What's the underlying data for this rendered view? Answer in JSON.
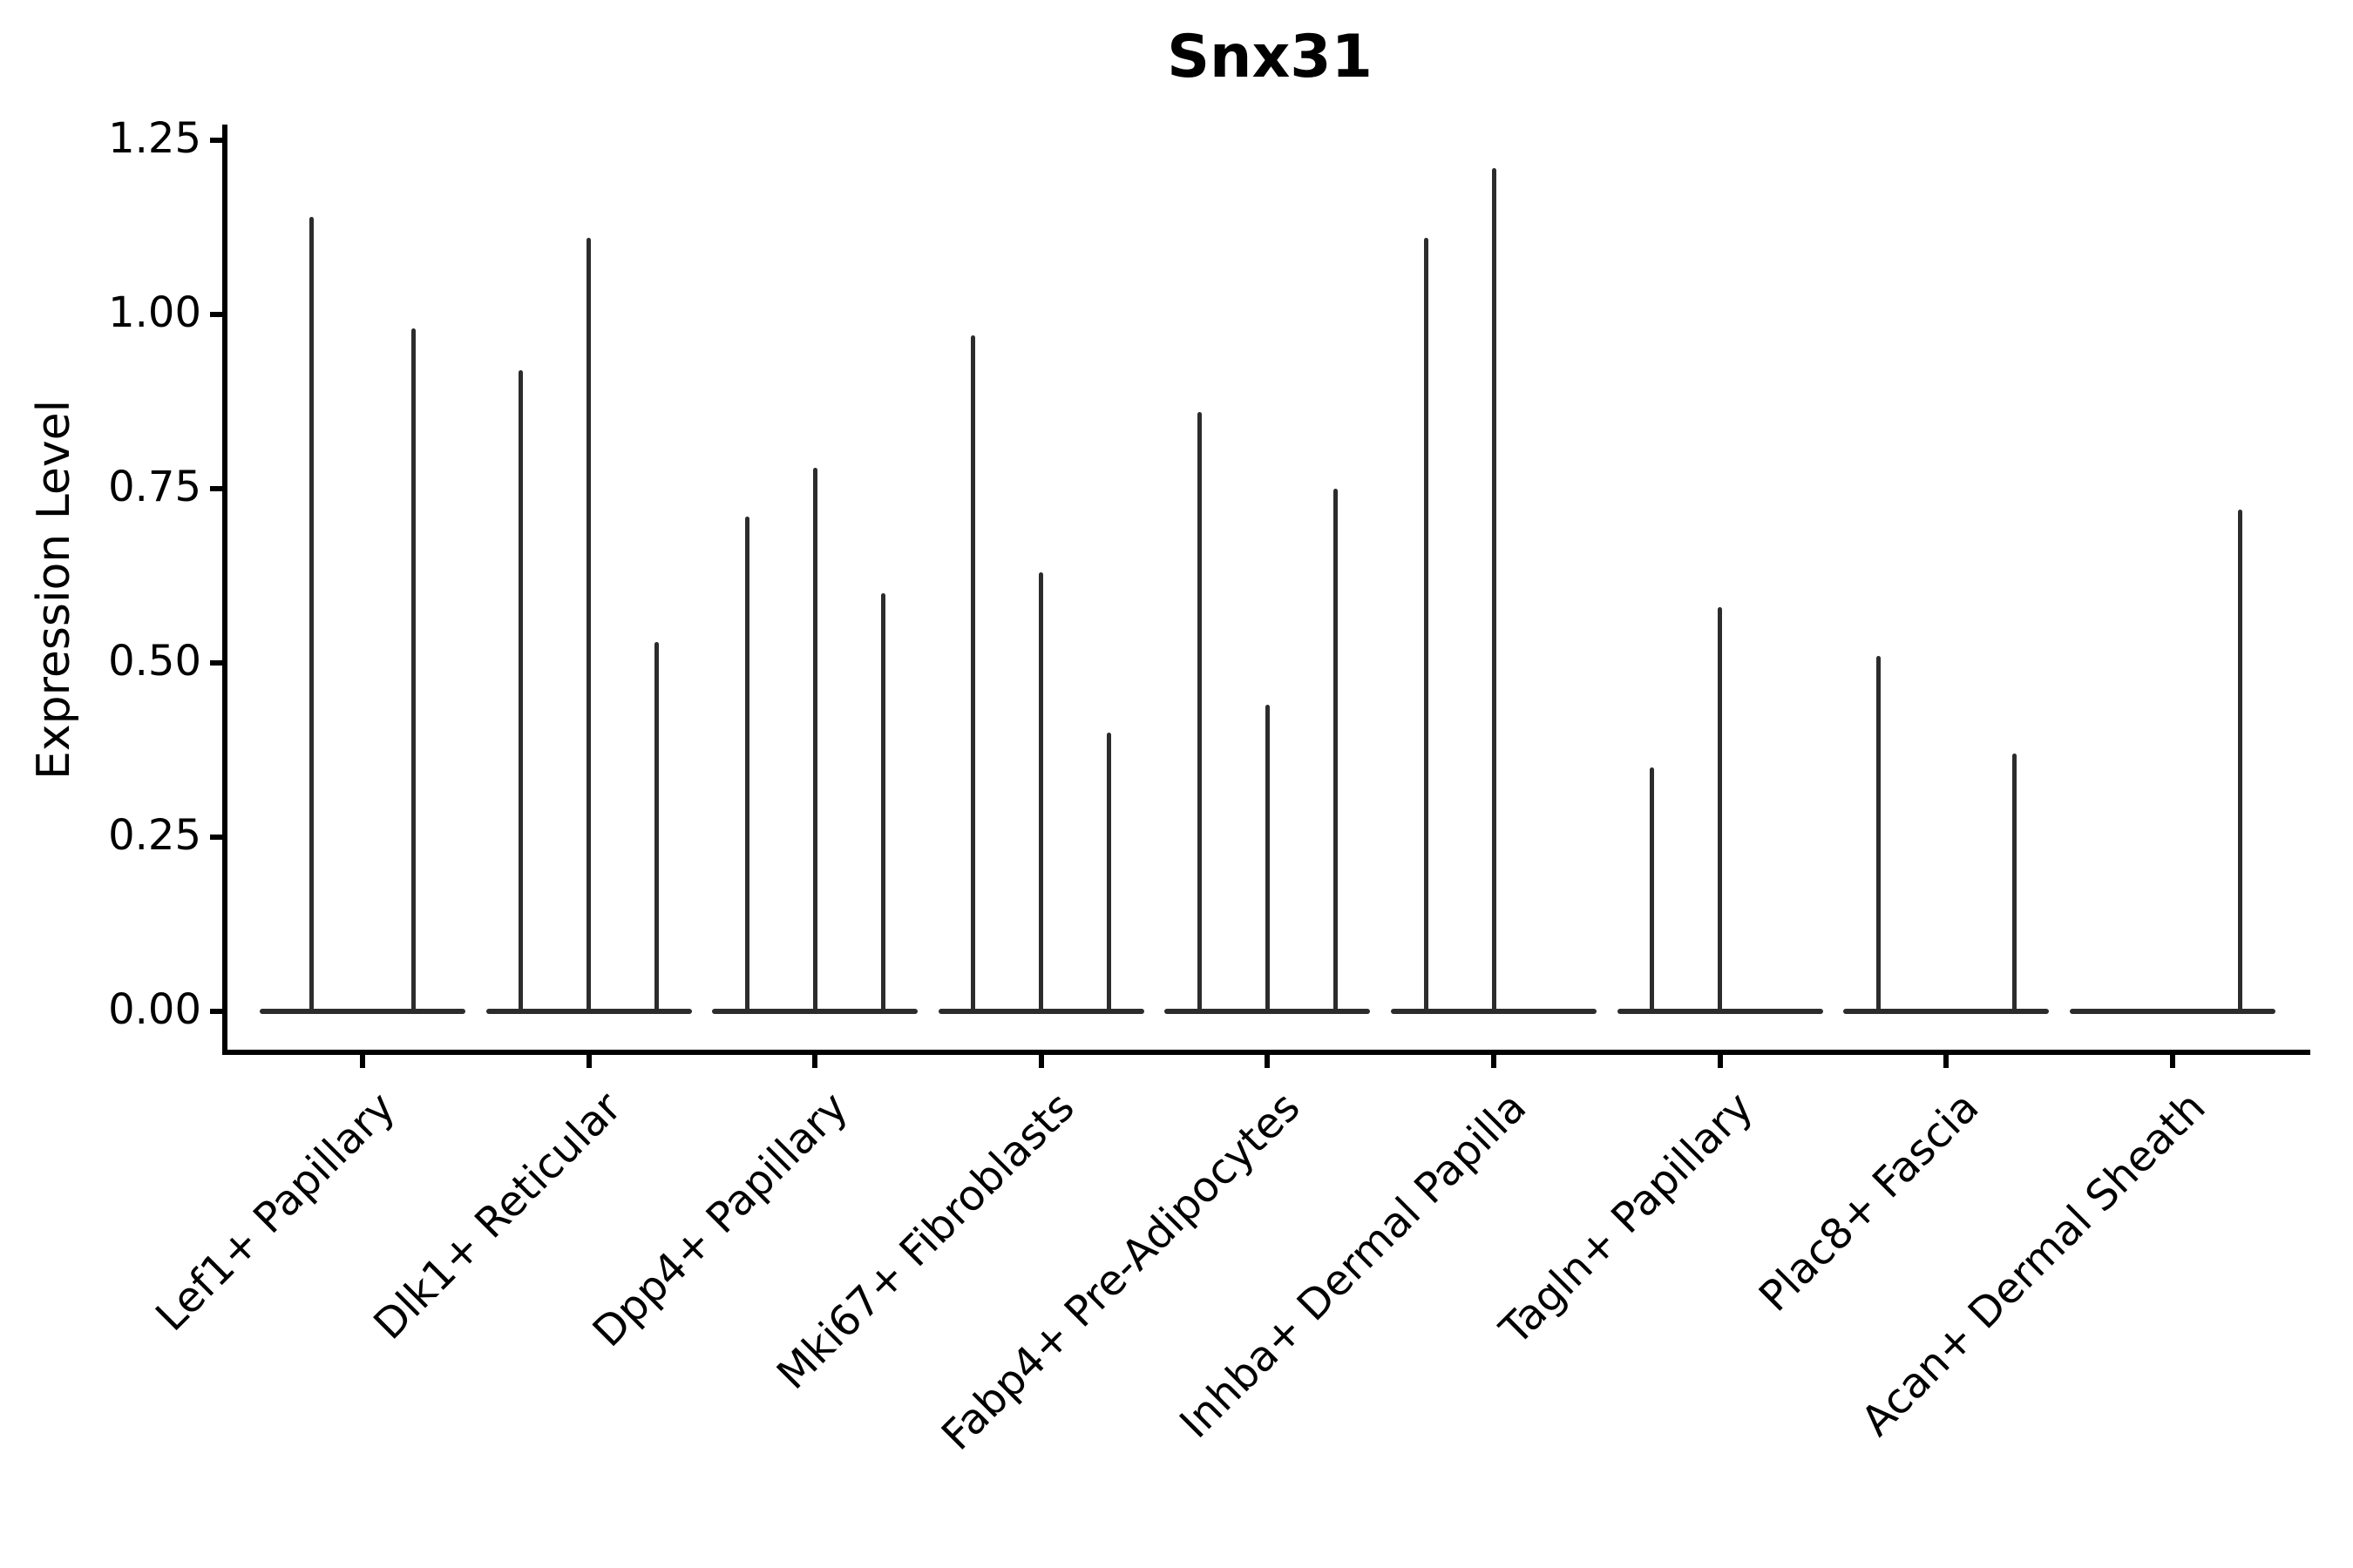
{
  "chart_data": {
    "type": "violin",
    "title": "Snx31",
    "ylabel": "Expression Level",
    "xlabel": "",
    "grid": false,
    "legend": null,
    "ylim": [
      -0.06,
      1.27
    ],
    "yticks": [
      0.0,
      0.25,
      0.5,
      0.75,
      1.0,
      1.25
    ],
    "ytick_labels": [
      "0.00",
      "0.25",
      "0.50",
      "0.75",
      "1.00",
      "1.25"
    ],
    "categories": [
      "Lef1+ Papillary",
      "Dlk1+ Reticular",
      "Dpp4+ Papillary",
      "Mki67+ Fibroblasts",
      "Fabp4+ Pre-Adipocytes",
      "Inhba+ Dermal Papilla",
      "Tagln+ Papillary",
      "Plac8+ Fascia",
      "Acan+ Dermal Sheath"
    ],
    "groups": [
      {
        "category": "Lef1+ Papillary",
        "violins": [
          {
            "offset": -0.225,
            "max": 1.14
          },
          {
            "offset": 0.225,
            "max": 0.98
          }
        ]
      },
      {
        "category": "Dlk1+ Reticular",
        "violins": [
          {
            "offset": -0.3,
            "max": 0.92
          },
          {
            "offset": 0.0,
            "max": 1.11
          },
          {
            "offset": 0.3,
            "max": 0.53
          }
        ]
      },
      {
        "category": "Dpp4+ Papillary",
        "violins": [
          {
            "offset": -0.3,
            "max": 0.71
          },
          {
            "offset": 0.0,
            "max": 0.78
          },
          {
            "offset": 0.3,
            "max": 0.6
          }
        ]
      },
      {
        "category": "Mki67+ Fibroblasts",
        "violins": [
          {
            "offset": -0.3,
            "max": 0.97
          },
          {
            "offset": 0.0,
            "max": 0.63
          },
          {
            "offset": 0.3,
            "max": 0.4
          }
        ]
      },
      {
        "category": "Fabp4+ Pre-Adipocytes",
        "violins": [
          {
            "offset": -0.3,
            "max": 0.86
          },
          {
            "offset": 0.0,
            "max": 0.44
          },
          {
            "offset": 0.3,
            "max": 0.75
          }
        ]
      },
      {
        "category": "Inhba+ Dermal Papilla",
        "violins": [
          {
            "offset": -0.3,
            "max": 1.11
          },
          {
            "offset": 0.0,
            "max": 1.21
          },
          {
            "offset": 0.3,
            "max": 0.0
          }
        ]
      },
      {
        "category": "Tagln+ Papillary",
        "violins": [
          {
            "offset": -0.3,
            "max": 0.35
          },
          {
            "offset": 0.0,
            "max": 0.58
          },
          {
            "offset": 0.3,
            "max": 0.0
          }
        ]
      },
      {
        "category": "Plac8+ Fascia",
        "violins": [
          {
            "offset": -0.3,
            "max": 0.51
          },
          {
            "offset": 0.0,
            "max": 0.0
          },
          {
            "offset": 0.3,
            "max": 0.37
          }
        ]
      },
      {
        "category": "Acan+ Dermal Sheath",
        "violins": [
          {
            "offset": -0.3,
            "max": 0.0
          },
          {
            "offset": 0.0,
            "max": 0.0
          },
          {
            "offset": 0.3,
            "max": 0.72
          }
        ]
      }
    ],
    "colors": {
      "violin": "#2c2c2c",
      "axis": "#000000",
      "text": "#000000",
      "background": "#ffffff"
    }
  }
}
